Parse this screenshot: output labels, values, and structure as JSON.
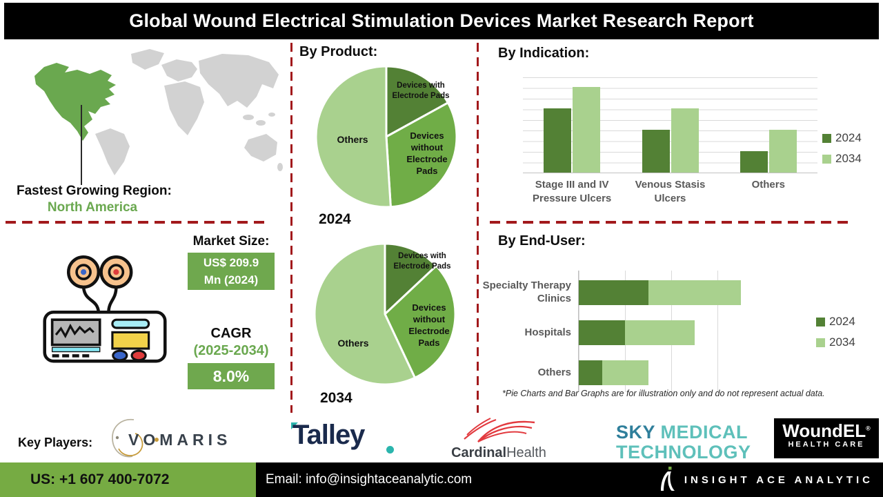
{
  "title": "Global Wound Electrical Stimulation Devices Market Research Report",
  "region": {
    "heading": "Fastest Growing Region:",
    "value": "North America"
  },
  "market": {
    "size_heading": "Market Size:",
    "size_line1": "US$ 209.9",
    "size_line2": "Mn (2024)",
    "cagr_heading": "CAGR",
    "cagr_period": "(2025-2034)",
    "cagr_value": "8.0%"
  },
  "sections": {
    "product": "By Product:",
    "indication": "By Indication:",
    "end_user": "By End-User:"
  },
  "disclaimer": "*Pie Charts and Bar Graphs are for illustration only and do not represent actual data.",
  "key_players": {
    "heading": "Key Players:",
    "vomaris": {
      "name": "Vomaris",
      "text": "VOMARIS"
    },
    "talley": {
      "name": "Talley",
      "text": "Talley"
    },
    "cardinal": {
      "name": "Cardinal Health",
      "text_bold": "Cardinal",
      "text_light": "Health"
    },
    "sky": {
      "name": "Sky Medical Technology",
      "word1": "SKY",
      "word2": "MEDICAL",
      "word3": "TECHNOLOGY"
    },
    "woundel": {
      "name": "WoundEL Health Care",
      "text": "WoundEL",
      "reg": "®",
      "sub": "HEALTH CARE"
    }
  },
  "footer": {
    "phone": "US: +1 607 400-7072",
    "email": "Email: info@insightaceanalytic.com",
    "brand": "INSIGHT ACE ANALYTIC"
  },
  "colors": {
    "dark_green": "#538135",
    "mid_green": "#70ad47",
    "light_green": "#a9d18e",
    "box_green": "#6fa84e",
    "footer_green": "#76ab43",
    "dash_red": "#a2191c",
    "na_green": "#6aa84f"
  },
  "chart_data": [
    {
      "id": "product_2024",
      "type": "pie",
      "title": "By Product: 2024",
      "year_label": "2024",
      "slices": [
        {
          "label": "Devices with Electrode Pads",
          "value": 17,
          "color": "#538135"
        },
        {
          "label": "Devices without Electrode Pads",
          "value": 32,
          "color": "#70ad47"
        },
        {
          "label": "Others",
          "value": 51,
          "color": "#a9d18e"
        }
      ],
      "note": "illustrative share, percent"
    },
    {
      "id": "product_2034",
      "type": "pie",
      "title": "By Product: 2034",
      "year_label": "2034",
      "slices": [
        {
          "label": "Devices with Electrode Pads",
          "value": 13,
          "color": "#538135"
        },
        {
          "label": "Devices without Electrode Pads",
          "value": 30,
          "color": "#70ad47"
        },
        {
          "label": "Others",
          "value": 57,
          "color": "#a9d18e"
        }
      ],
      "note": "illustrative share, percent"
    },
    {
      "id": "indication",
      "type": "bar",
      "title": "By Indication:",
      "categories": [
        "Stage III and IV Pressure Ulcers",
        "Venous Stasis Ulcers",
        "Others"
      ],
      "series": [
        {
          "name": "2024",
          "color": "#538135",
          "values": [
            6,
            4,
            2
          ]
        },
        {
          "name": "2034",
          "color": "#a9d18e",
          "values": [
            8,
            6,
            4
          ]
        }
      ],
      "ylim": [
        0,
        9
      ],
      "grid": "horizontal",
      "legend_position": "right",
      "note": "unlabeled axis, values in gridline units"
    },
    {
      "id": "end_user",
      "type": "hbar-stacked",
      "title": "By End-User:",
      "categories": [
        "Specialty Therapy Clinics",
        "Hospitals",
        "Others"
      ],
      "series": [
        {
          "name": "2024",
          "color": "#538135",
          "values": [
            1.5,
            1,
            0.5
          ]
        },
        {
          "name": "2034",
          "color": "#a9d18e",
          "values": [
            2,
            1.5,
            1
          ]
        }
      ],
      "xlim": [
        0,
        4
      ],
      "grid": "vertical",
      "legend_position": "right",
      "note": "unlabeled axis, values in gridline units"
    }
  ]
}
